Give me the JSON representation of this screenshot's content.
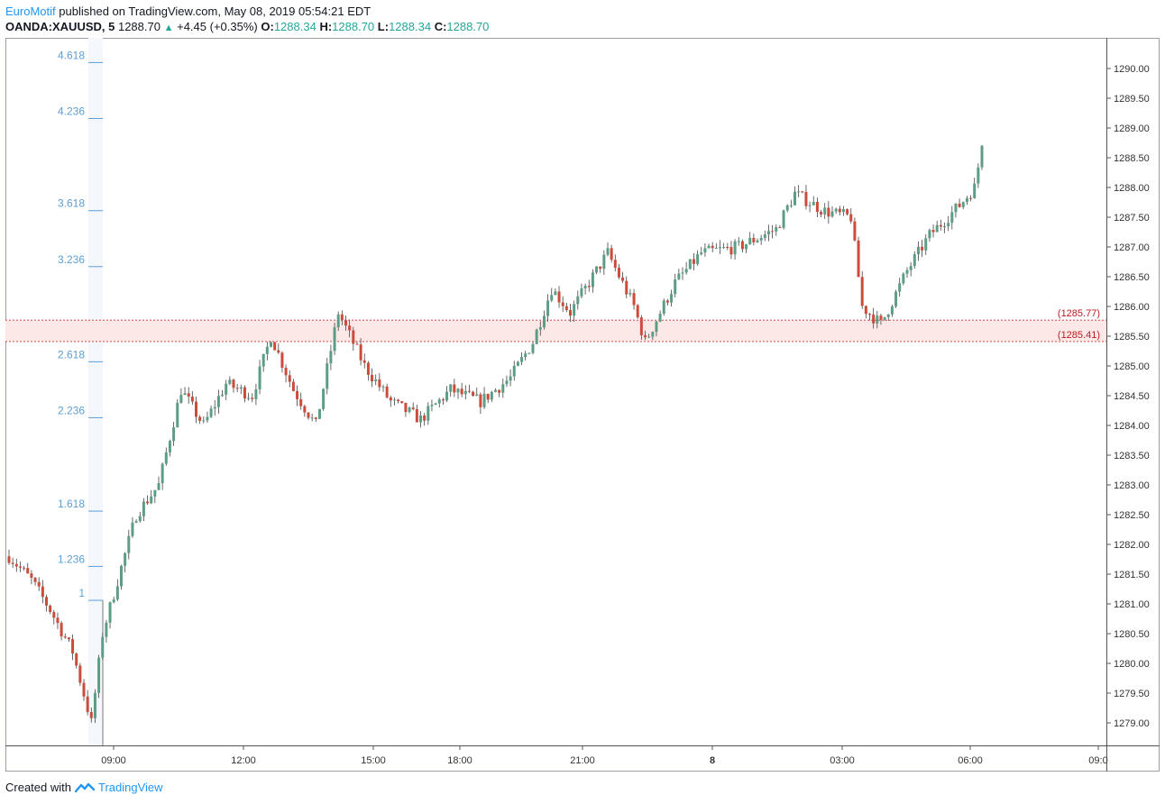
{
  "header": {
    "author": "EuroMotif",
    "published_text": "published on TradingView.com, May 08, 2019 05:54:21 EDT"
  },
  "symbol_bar": {
    "symbol": "OANDA:XAUUSD, 5",
    "last": "1288.70",
    "change": "+4.45 (+0.35%)",
    "o_label": "O:",
    "o_value": "1288.34",
    "h_label": "H:",
    "h_value": "1288.70",
    "l_label": "L:",
    "l_value": "1288.34",
    "c_label": "C:",
    "c_value": "1288.70"
  },
  "footer": {
    "created_with": "Created with",
    "brand": "TradingView"
  },
  "colors": {
    "up": "#5b9e85",
    "down": "#cc4b3b",
    "wick": "#555555",
    "fib": "#5a9fd4",
    "zone_line": "#d32f2f",
    "zone_fill": "#fde8e8",
    "zone_label": "#b71c1c",
    "axis": "#555555",
    "header_link": "#2196f3",
    "value_green": "#26a69a"
  },
  "chart_data": {
    "type": "candlestick",
    "title": "",
    "xlabel": "",
    "ylabel": "",
    "ylim": [
      1278.6,
      1290.6
    ],
    "y_ticks": [
      "1279.00",
      "1279.50",
      "1280.00",
      "1280.50",
      "1281.00",
      "1281.50",
      "1282.00",
      "1282.50",
      "1283.00",
      "1283.50",
      "1284.00",
      "1284.50",
      "1285.00",
      "1285.50",
      "1286.00",
      "1286.50",
      "1287.00",
      "1287.50",
      "1288.00",
      "1288.50",
      "1289.00",
      "1289.50",
      "1290.00"
    ],
    "x_ticks": [
      "09:00",
      "12:00",
      "15:00",
      "18:00",
      "21:00",
      "8",
      "03:00",
      "06:00",
      "09:0"
    ],
    "fib_levels": [
      {
        "label": "4.618",
        "value": 1290.1
      },
      {
        "label": "4.236",
        "value": 1289.16
      },
      {
        "label": "3.618",
        "value": 1287.61
      },
      {
        "label": "3.236",
        "value": 1286.67
      },
      {
        "label": "2.618",
        "value": 1285.07
      },
      {
        "label": "2.236",
        "value": 1284.13
      },
      {
        "label": "1.618",
        "value": 1282.56
      },
      {
        "label": "1.236",
        "value": 1281.63
      },
      {
        "label": "1",
        "value": 1281.06
      }
    ],
    "zone": {
      "upper": 1285.77,
      "lower": 1285.41,
      "upper_label": "(1285.77)",
      "lower_label": "(1285.41)"
    },
    "waypoints": [
      [
        0,
        1281.8
      ],
      [
        6,
        1281.4
      ],
      [
        11,
        1280.9
      ],
      [
        17,
        1280.2
      ],
      [
        22,
        1279.0
      ],
      [
        25,
        1280.5
      ],
      [
        34,
        1282.5
      ],
      [
        40,
        1283.0
      ],
      [
        46,
        1284.6
      ],
      [
        52,
        1284.0
      ],
      [
        58,
        1284.7
      ],
      [
        65,
        1284.5
      ],
      [
        70,
        1285.5
      ],
      [
        76,
        1284.6
      ],
      [
        82,
        1284.0
      ],
      [
        88,
        1285.9
      ],
      [
        95,
        1285.0
      ],
      [
        102,
        1284.4
      ],
      [
        110,
        1284.1
      ],
      [
        118,
        1284.6
      ],
      [
        126,
        1284.4
      ],
      [
        134,
        1284.8
      ],
      [
        140,
        1285.4
      ],
      [
        145,
        1286.3
      ],
      [
        150,
        1285.9
      ],
      [
        160,
        1286.9
      ],
      [
        167,
        1286.0
      ],
      [
        170,
        1285.4
      ],
      [
        178,
        1286.4
      ],
      [
        185,
        1286.9
      ],
      [
        195,
        1287.0
      ],
      [
        205,
        1287.3
      ],
      [
        210,
        1287.9
      ],
      [
        218,
        1287.6
      ],
      [
        225,
        1287.5
      ],
      [
        228,
        1286.0
      ],
      [
        233,
        1285.7
      ],
      [
        240,
        1286.6
      ],
      [
        246,
        1287.2
      ],
      [
        254,
        1287.7
      ],
      [
        258,
        1288.0
      ],
      [
        260,
        1288.7
      ]
    ],
    "candle_count": 261,
    "time_range": "May 07 ~06:55 to May 08 05:50 (5-minute candles)"
  }
}
